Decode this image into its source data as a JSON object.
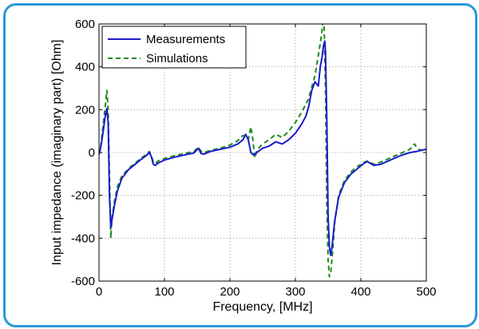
{
  "chart_data": {
    "type": "line",
    "xlabel": "Frequency, [MHz]",
    "ylabel": "Input impedance (imaginary part) [Ohm]",
    "xlim": [
      0,
      500
    ],
    "ylim": [
      -600,
      600
    ],
    "xticks": [
      0,
      100,
      200,
      300,
      400,
      500
    ],
    "yticks": [
      -600,
      -400,
      -200,
      0,
      200,
      400,
      600
    ],
    "grid": true,
    "legend_position": "top-left",
    "series": [
      {
        "name": "Measurements",
        "color": "#1a1acc",
        "style": "solid",
        "x": [
          0,
          3,
          6,
          9,
          12,
          14,
          16,
          18,
          20,
          24,
          28,
          35,
          45,
          55,
          65,
          72,
          77,
          80,
          83,
          86,
          90,
          100,
          115,
          130,
          145,
          152,
          156,
          160,
          170,
          185,
          200,
          212,
          220,
          224,
          228,
          232,
          236,
          242,
          250,
          260,
          270,
          280,
          290,
          300,
          310,
          316,
          320,
          325,
          330,
          335,
          338,
          341,
          343,
          345,
          346,
          348,
          350,
          352,
          354,
          356,
          360,
          366,
          375,
          385,
          395,
          405,
          410,
          414,
          420,
          430,
          445,
          460,
          475,
          485,
          492,
          500
        ],
        "y": [
          -10,
          30,
          90,
          160,
          205,
          140,
          -200,
          -350,
          -310,
          -240,
          -180,
          -120,
          -80,
          -55,
          -30,
          -15,
          0,
          -20,
          -55,
          -60,
          -50,
          -35,
          -22,
          -12,
          -2,
          20,
          -5,
          -8,
          5,
          15,
          25,
          40,
          60,
          85,
          60,
          0,
          -12,
          2,
          20,
          30,
          50,
          40,
          60,
          90,
          135,
          170,
          210,
          290,
          330,
          310,
          400,
          450,
          500,
          520,
          470,
          150,
          -300,
          -440,
          -480,
          -440,
          -320,
          -210,
          -140,
          -100,
          -75,
          -50,
          -42,
          -50,
          -60,
          -55,
          -35,
          -15,
          0,
          5,
          10,
          15
        ]
      },
      {
        "name": "Simulations",
        "color": "#1e8c1e",
        "style": "dashed",
        "x": [
          0,
          3,
          6,
          9,
          12,
          14,
          16,
          18,
          20,
          24,
          28,
          35,
          45,
          55,
          65,
          72,
          77,
          80,
          83,
          86,
          90,
          100,
          115,
          130,
          145,
          152,
          156,
          160,
          170,
          185,
          200,
          212,
          220,
          228,
          232,
          235,
          238,
          242,
          250,
          260,
          270,
          280,
          290,
          300,
          310,
          320,
          330,
          336,
          340,
          342,
          344,
          346,
          348,
          350,
          352,
          354,
          357,
          360,
          366,
          375,
          385,
          395,
          405,
          410,
          414,
          420,
          430,
          445,
          460,
          475,
          482,
          486,
          492,
          500
        ],
        "y": [
          -10,
          40,
          120,
          200,
          290,
          200,
          -100,
          -400,
          -300,
          -220,
          -160,
          -110,
          -75,
          -50,
          -25,
          -10,
          5,
          -15,
          -45,
          -50,
          -40,
          -28,
          -15,
          -5,
          5,
          25,
          5,
          0,
          10,
          20,
          35,
          55,
          80,
          60,
          120,
          60,
          -25,
          15,
          40,
          60,
          85,
          70,
          100,
          140,
          190,
          250,
          360,
          470,
          550,
          610,
          580,
          300,
          -250,
          -500,
          -580,
          -560,
          -460,
          -330,
          -200,
          -130,
          -90,
          -65,
          -45,
          -40,
          -45,
          -55,
          -45,
          -25,
          -5,
          15,
          40,
          20,
          10,
          20
        ]
      }
    ]
  }
}
